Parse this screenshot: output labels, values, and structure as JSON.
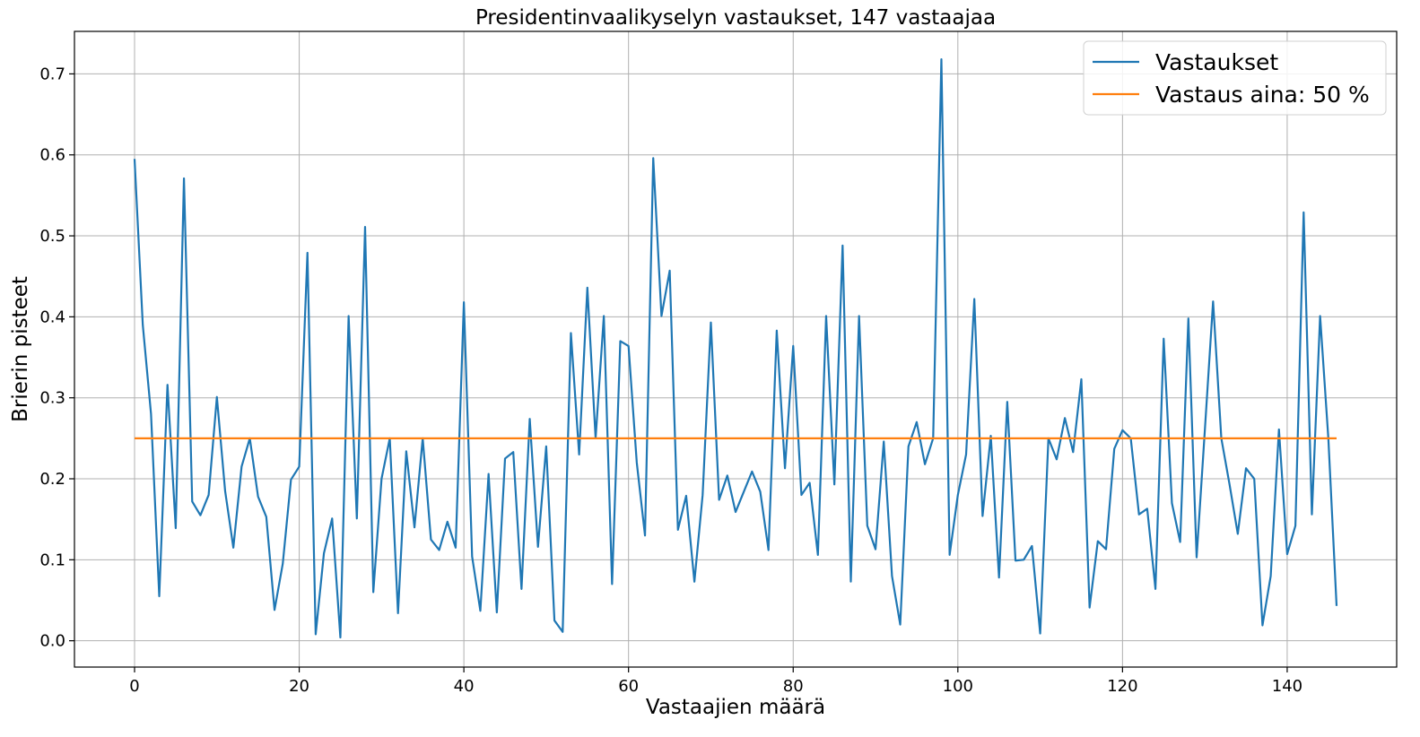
{
  "chart_data": {
    "type": "line",
    "title": "Presidentinvaalikyselyn vastaukset, 147 vastaajaa",
    "xlabel": "Vastaajien määrä",
    "ylabel": "Brierin pisteet",
    "xlim": [
      -7.3,
      153.3
    ],
    "ylim": [
      -0.0325,
      0.7525
    ],
    "xticks": [
      0,
      20,
      40,
      60,
      80,
      100,
      120,
      140
    ],
    "yticks": [
      0.0,
      0.1,
      0.2,
      0.3,
      0.4,
      0.5,
      0.6,
      0.7
    ],
    "xtick_labels": [
      "0",
      "20",
      "40",
      "60",
      "80",
      "100",
      "120",
      "140"
    ],
    "ytick_labels": [
      "0.0",
      "0.1",
      "0.2",
      "0.3",
      "0.4",
      "0.5",
      "0.6",
      "0.7"
    ],
    "grid": true,
    "legend_position": "top-right",
    "series": [
      {
        "name": "Vastaukset",
        "color": "#1f77b4",
        "x_start": 0,
        "x_step": 1,
        "values": [
          0.595,
          0.39,
          0.28,
          0.055,
          0.316,
          0.139,
          0.571,
          0.172,
          0.155,
          0.18,
          0.301,
          0.185,
          0.115,
          0.215,
          0.25,
          0.178,
          0.153,
          0.038,
          0.095,
          0.199,
          0.215,
          0.479,
          0.008,
          0.108,
          0.151,
          0.004,
          0.401,
          0.151,
          0.511,
          0.06,
          0.2,
          0.25,
          0.034,
          0.234,
          0.14,
          0.25,
          0.125,
          0.112,
          0.147,
          0.115,
          0.418,
          0.104,
          0.037,
          0.206,
          0.035,
          0.225,
          0.233,
          0.064,
          0.274,
          0.116,
          0.24,
          0.025,
          0.011,
          0.38,
          0.23,
          0.436,
          0.25,
          0.401,
          0.07,
          0.37,
          0.364,
          0.22,
          0.13,
          0.596,
          0.401,
          0.457,
          0.137,
          0.179,
          0.073,
          0.18,
          0.393,
          0.174,
          0.204,
          0.159,
          0.184,
          0.209,
          0.184,
          0.112,
          0.383,
          0.213,
          0.364,
          0.18,
          0.195,
          0.106,
          0.401,
          0.193,
          0.488,
          0.073,
          0.401,
          0.142,
          0.113,
          0.246,
          0.08,
          0.02,
          0.24,
          0.27,
          0.218,
          0.25,
          0.718,
          0.106,
          0.18,
          0.23,
          0.422,
          0.154,
          0.253,
          0.078,
          0.295,
          0.099,
          0.1,
          0.117,
          0.009,
          0.25,
          0.224,
          0.275,
          0.233,
          0.323,
          0.041,
          0.123,
          0.113,
          0.237,
          0.26,
          0.25,
          0.156,
          0.163,
          0.064,
          0.373,
          0.17,
          0.122,
          0.398,
          0.103,
          0.26,
          0.419,
          0.25,
          0.193,
          0.132,
          0.213,
          0.2,
          0.019,
          0.08,
          0.261,
          0.107,
          0.142,
          0.529,
          0.156,
          0.401,
          0.25,
          0.043
        ]
      },
      {
        "name": "Vastaus aina: 50 %",
        "color": "#ff7f0e",
        "x": [
          0,
          146
        ],
        "values": [
          0.25,
          0.25
        ]
      }
    ]
  }
}
